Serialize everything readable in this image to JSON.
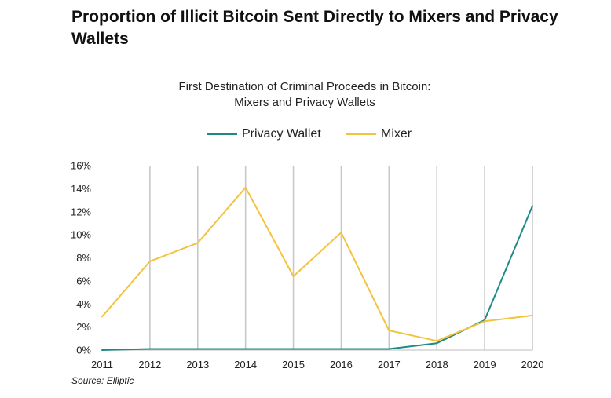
{
  "page_title": "Proportion of Illicit Bitcoin Sent Directly to Mixers and Privacy Wallets",
  "source": "Source: Elliptic",
  "colors": {
    "privacy_wallet": "#1f8a85",
    "mixer": "#f2c43d",
    "grid": "#c8c8c8",
    "axis": "#bdbdbd"
  },
  "chart_data": {
    "type": "line",
    "title": "First Destination of Criminal Proceeds in Bitcoin:\nMixers and Privacy Wallets",
    "title_lines": [
      "First Destination of Criminal Proceeds in Bitcoin:",
      "Mixers and Privacy Wallets"
    ],
    "x": [
      "2011",
      "2012",
      "2013",
      "2014",
      "2015",
      "2016",
      "2017",
      "2018",
      "2019",
      "2020"
    ],
    "ylim": [
      0,
      16
    ],
    "yticks": [
      0,
      2,
      4,
      6,
      8,
      10,
      12,
      14,
      16
    ],
    "ytick_labels": [
      "0%",
      "2%",
      "4%",
      "6%",
      "8%",
      "10%",
      "12%",
      "14%",
      "16%"
    ],
    "grid": "vertical",
    "legend_position": "top-center",
    "series": [
      {
        "name": "Privacy Wallet",
        "color": "#1f8a85",
        "values": [
          0.0,
          0.1,
          0.1,
          0.1,
          0.1,
          0.1,
          0.1,
          0.6,
          2.6,
          12.5
        ]
      },
      {
        "name": "Mixer",
        "color": "#f2c43d",
        "values": [
          2.9,
          7.7,
          9.3,
          14.1,
          6.4,
          10.2,
          1.7,
          0.8,
          2.5,
          3.0
        ]
      }
    ]
  }
}
